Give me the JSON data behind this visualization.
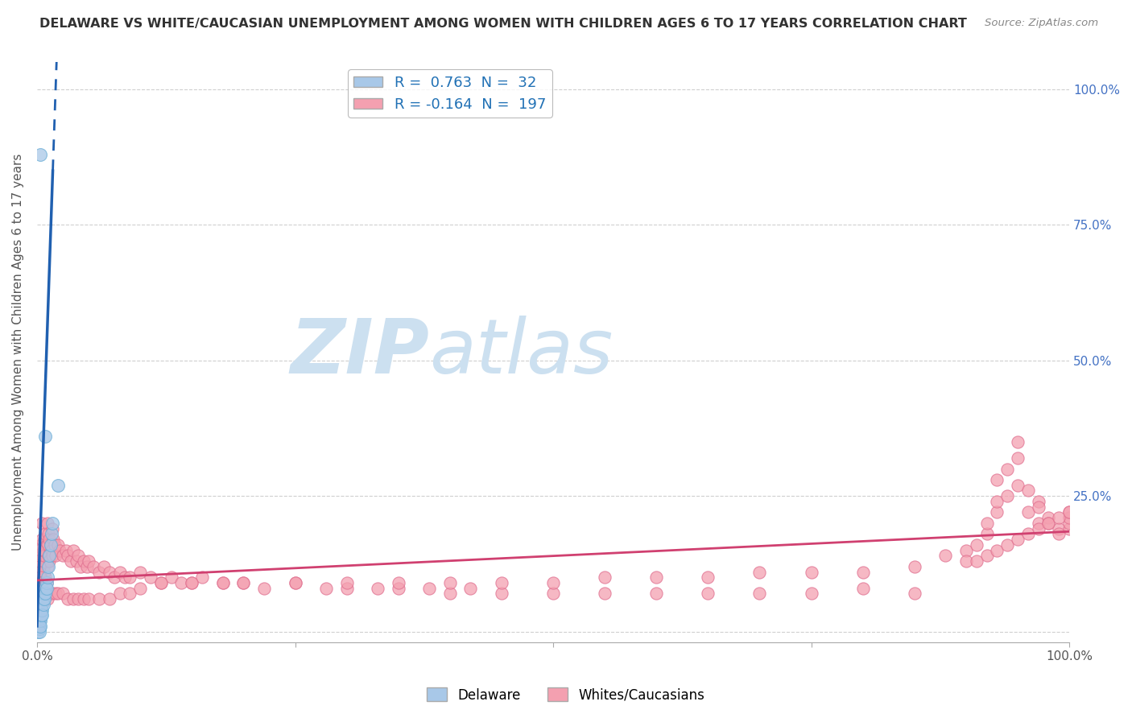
{
  "title": "DELAWARE VS WHITE/CAUCASIAN UNEMPLOYMENT AMONG WOMEN WITH CHILDREN AGES 6 TO 17 YEARS CORRELATION CHART",
  "source": "Source: ZipAtlas.com",
  "ylabel": "Unemployment Among Women with Children Ages 6 to 17 years",
  "xlim": [
    0,
    1
  ],
  "ylim": [
    -0.02,
    1.05
  ],
  "xtick_vals": [
    0,
    0.25,
    0.5,
    0.75,
    1.0
  ],
  "xtick_labels": [
    "0.0%",
    "",
    "",
    "",
    "100.0%"
  ],
  "ytick_vals": [
    0,
    0.25,
    0.5,
    0.75,
    1.0
  ],
  "ytick_labels": [
    "",
    "",
    "",
    "",
    ""
  ],
  "right_ytick_vals": [
    0.25,
    0.5,
    0.75,
    1.0
  ],
  "right_ytick_labels": [
    "25.0%",
    "50.0%",
    "75.0%",
    "100.0%"
  ],
  "delaware_R": 0.763,
  "delaware_N": 32,
  "white_R": -0.164,
  "white_N": 197,
  "delaware_color": "#a8c8e8",
  "delaware_edge_color": "#6baed6",
  "white_color": "#f4a0b0",
  "white_edge_color": "#e07090",
  "delaware_line_color": "#2060b0",
  "white_line_color": "#d04070",
  "background_color": "#ffffff",
  "grid_color": "#bbbbbb",
  "watermark_color": "#cce0f0",
  "legend_label_delaware": "Delaware",
  "legend_label_white": "Whites/Caucasians",
  "delaware_dots_x": [
    0.001,
    0.001,
    0.001,
    0.002,
    0.002,
    0.002,
    0.002,
    0.003,
    0.003,
    0.003,
    0.004,
    0.004,
    0.005,
    0.005,
    0.005,
    0.006,
    0.006,
    0.007,
    0.007,
    0.008,
    0.008,
    0.009,
    0.009,
    0.01,
    0.011,
    0.012,
    0.013,
    0.014,
    0.015,
    0.02,
    0.008,
    0.003
  ],
  "delaware_dots_y": [
    0.01,
    0.005,
    0.0,
    0.02,
    0.01,
    0.005,
    0.0,
    0.03,
    0.02,
    0.01,
    0.04,
    0.03,
    0.05,
    0.04,
    0.03,
    0.06,
    0.05,
    0.07,
    0.06,
    0.08,
    0.07,
    0.09,
    0.08,
    0.1,
    0.12,
    0.14,
    0.16,
    0.18,
    0.2,
    0.27,
    0.36,
    0.88
  ],
  "white_dots_x": [
    0.001,
    0.001,
    0.001,
    0.001,
    0.001,
    0.001,
    0.002,
    0.002,
    0.002,
    0.002,
    0.002,
    0.002,
    0.003,
    0.003,
    0.003,
    0.003,
    0.003,
    0.004,
    0.004,
    0.004,
    0.004,
    0.004,
    0.005,
    0.005,
    0.005,
    0.005,
    0.005,
    0.005,
    0.006,
    0.006,
    0.006,
    0.006,
    0.007,
    0.007,
    0.007,
    0.007,
    0.008,
    0.008,
    0.008,
    0.009,
    0.009,
    0.009,
    0.01,
    0.01,
    0.01,
    0.011,
    0.011,
    0.012,
    0.012,
    0.013,
    0.014,
    0.015,
    0.015,
    0.016,
    0.017,
    0.018,
    0.02,
    0.022,
    0.025,
    0.028,
    0.03,
    0.033,
    0.035,
    0.038,
    0.04,
    0.042,
    0.045,
    0.048,
    0.05,
    0.055,
    0.06,
    0.065,
    0.07,
    0.075,
    0.08,
    0.085,
    0.09,
    0.1,
    0.11,
    0.12,
    0.13,
    0.14,
    0.15,
    0.16,
    0.18,
    0.2,
    0.22,
    0.25,
    0.28,
    0.3,
    0.33,
    0.35,
    0.38,
    0.4,
    0.42,
    0.45,
    0.5,
    0.55,
    0.6,
    0.65,
    0.7,
    0.75,
    0.8,
    0.85,
    0.88,
    0.9,
    0.91,
    0.92,
    0.92,
    0.93,
    0.93,
    0.93,
    0.94,
    0.94,
    0.95,
    0.95,
    0.95,
    0.96,
    0.96,
    0.97,
    0.97,
    0.97,
    0.98,
    0.98,
    0.99,
    0.99,
    1.0,
    1.0,
    1.0,
    1.0,
    0.001,
    0.001,
    0.002,
    0.002,
    0.003,
    0.003,
    0.004,
    0.004,
    0.005,
    0.005,
    0.006,
    0.007,
    0.008,
    0.009,
    0.01,
    0.012,
    0.015,
    0.018,
    0.02,
    0.025,
    0.03,
    0.035,
    0.04,
    0.045,
    0.05,
    0.06,
    0.07,
    0.08,
    0.09,
    0.1,
    0.12,
    0.15,
    0.18,
    0.2,
    0.25,
    0.3,
    0.35,
    0.4,
    0.45,
    0.5,
    0.55,
    0.6,
    0.65,
    0.7,
    0.75,
    0.8,
    0.85,
    0.9,
    0.91,
    0.92,
    0.93,
    0.94,
    0.95,
    0.96,
    0.97,
    0.98,
    0.99,
    1.0
  ],
  "white_dots_y": [
    0.06,
    0.05,
    0.04,
    0.03,
    0.02,
    0.01,
    0.1,
    0.08,
    0.06,
    0.05,
    0.04,
    0.02,
    0.13,
    0.1,
    0.08,
    0.06,
    0.04,
    0.16,
    0.13,
    0.1,
    0.07,
    0.05,
    0.2,
    0.17,
    0.14,
    0.11,
    0.08,
    0.05,
    0.15,
    0.12,
    0.09,
    0.06,
    0.17,
    0.14,
    0.11,
    0.08,
    0.18,
    0.14,
    0.1,
    0.16,
    0.13,
    0.09,
    0.2,
    0.16,
    0.12,
    0.18,
    0.14,
    0.17,
    0.13,
    0.16,
    0.15,
    0.19,
    0.14,
    0.17,
    0.16,
    0.14,
    0.16,
    0.15,
    0.14,
    0.15,
    0.14,
    0.13,
    0.15,
    0.13,
    0.14,
    0.12,
    0.13,
    0.12,
    0.13,
    0.12,
    0.11,
    0.12,
    0.11,
    0.1,
    0.11,
    0.1,
    0.1,
    0.11,
    0.1,
    0.09,
    0.1,
    0.09,
    0.09,
    0.1,
    0.09,
    0.09,
    0.08,
    0.09,
    0.08,
    0.08,
    0.08,
    0.08,
    0.08,
    0.07,
    0.08,
    0.07,
    0.07,
    0.07,
    0.07,
    0.07,
    0.07,
    0.07,
    0.08,
    0.07,
    0.14,
    0.15,
    0.16,
    0.18,
    0.2,
    0.22,
    0.24,
    0.28,
    0.25,
    0.3,
    0.27,
    0.32,
    0.35,
    0.22,
    0.26,
    0.2,
    0.24,
    0.23,
    0.21,
    0.2,
    0.19,
    0.18,
    0.19,
    0.2,
    0.21,
    0.22,
    0.15,
    0.13,
    0.12,
    0.11,
    0.1,
    0.09,
    0.09,
    0.08,
    0.08,
    0.08,
    0.07,
    0.07,
    0.07,
    0.07,
    0.06,
    0.07,
    0.07,
    0.07,
    0.07,
    0.07,
    0.06,
    0.06,
    0.06,
    0.06,
    0.06,
    0.06,
    0.06,
    0.07,
    0.07,
    0.08,
    0.09,
    0.09,
    0.09,
    0.09,
    0.09,
    0.09,
    0.09,
    0.09,
    0.09,
    0.09,
    0.1,
    0.1,
    0.1,
    0.11,
    0.11,
    0.11,
    0.12,
    0.13,
    0.13,
    0.14,
    0.15,
    0.16,
    0.17,
    0.18,
    0.19,
    0.2,
    0.21,
    0.22
  ]
}
